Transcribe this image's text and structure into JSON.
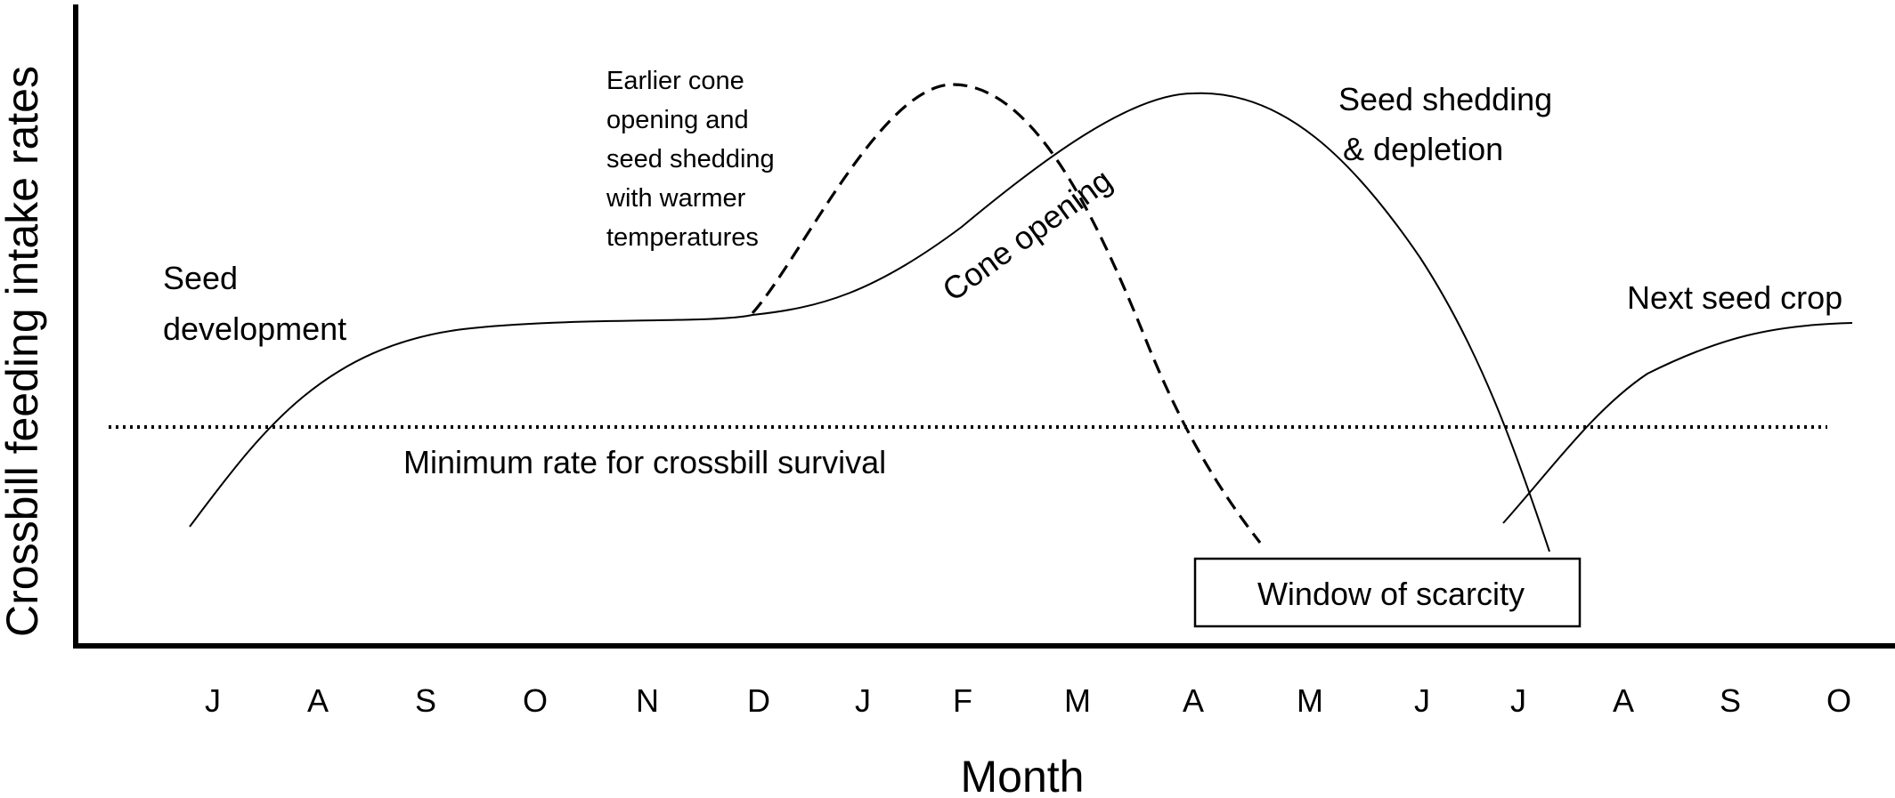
{
  "axes": {
    "y_title": "Crossbill feeding intake rates",
    "x_title": "Month",
    "months": [
      "J",
      "A",
      "S",
      "O",
      "N",
      "D",
      "J",
      "F",
      "M",
      "A",
      "M",
      "J",
      "J",
      "A",
      "S",
      "O"
    ]
  },
  "labels": {
    "seed_development": [
      "Seed",
      "development"
    ],
    "earlier_cone": [
      "Earlier cone",
      "opening and",
      "seed shedding",
      "with warmer",
      "temperatures"
    ],
    "cone_opening": "Cone opening",
    "seed_shedding": [
      "Seed shedding",
      "& depletion"
    ],
    "next_seed_crop": "Next seed crop",
    "minimum_rate": "Minimum rate for crossbill survival",
    "window_of_scarcity": "Window of scarcity"
  },
  "curves": [
    {
      "name": "current-seed-crop",
      "style": "solid"
    },
    {
      "name": "earlier-cone-opening",
      "style": "dashed"
    },
    {
      "name": "next-seed-crop",
      "style": "solid"
    },
    {
      "name": "minimum-rate-threshold",
      "style": "dotted"
    }
  ]
}
